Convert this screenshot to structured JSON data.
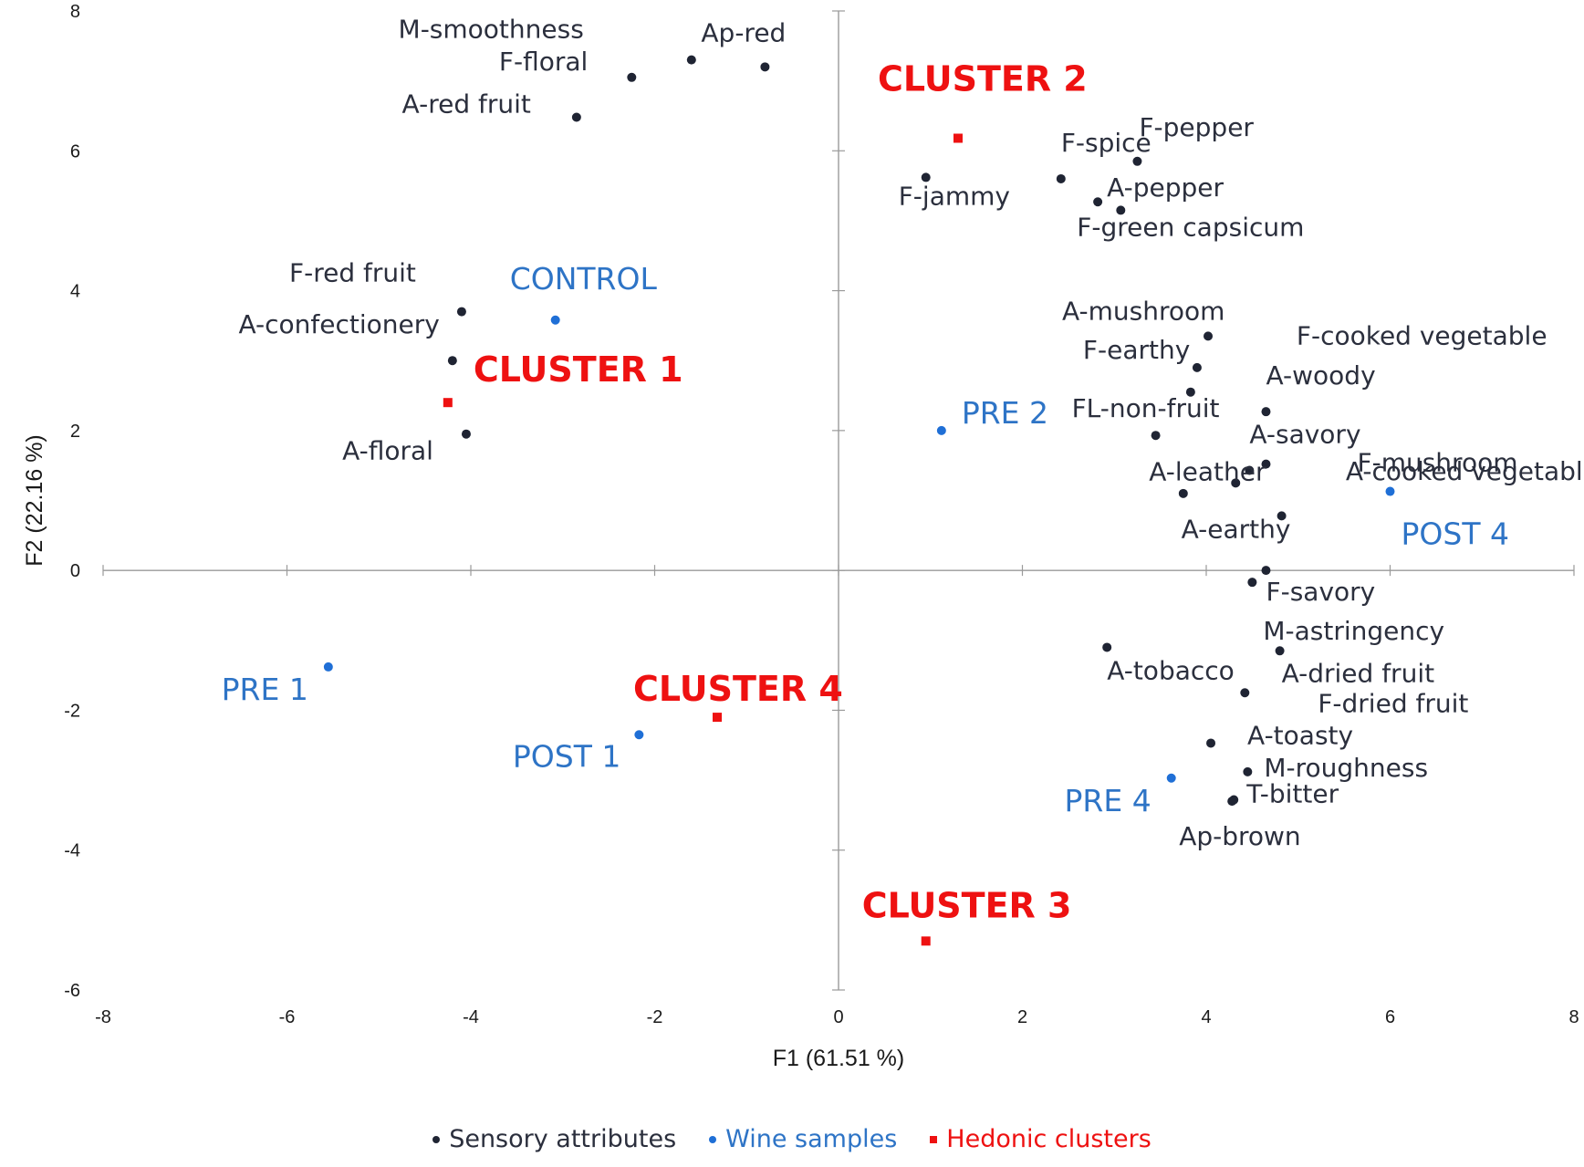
{
  "chart_data": {
    "type": "scatter",
    "xlabel": "F1 (61.51 %)",
    "ylabel": "F2 (22.16 %)",
    "xlim": [
      -8,
      8
    ],
    "ylim": [
      -6,
      8
    ],
    "x_ticks": [
      "-8",
      "-6",
      "-4",
      "-2",
      "0",
      "2",
      "4",
      "6",
      "8"
    ],
    "y_ticks": [
      "-6",
      "-4",
      "-2",
      "0",
      "2",
      "4",
      "6",
      "8"
    ],
    "grid": false,
    "legend_position": "bottom",
    "legend": [
      {
        "label": "Sensory attributes",
        "series": "attributes"
      },
      {
        "label": "Wine samples",
        "series": "samples"
      },
      {
        "label": "Hedonic clusters",
        "series": "clusters"
      }
    ],
    "series": [
      {
        "key": "attributes",
        "color": "#1f2433",
        "marker": "circle",
        "points": [
          {
            "label": "M-smoothness",
            "x": -1.6,
            "y": 7.3
          },
          {
            "label": "Ap-red",
            "x": -0.8,
            "y": 7.2
          },
          {
            "label": "F-floral",
            "x": -2.25,
            "y": 7.05
          },
          {
            "label": "A-red fruit",
            "x": -2.85,
            "y": 6.48
          },
          {
            "label": "F-red fruit",
            "x": -4.1,
            "y": 3.7
          },
          {
            "label": "A-confectionery",
            "x": -4.2,
            "y": 3.0
          },
          {
            "label": "A-floral",
            "x": -4.05,
            "y": 1.95
          },
          {
            "label": "F-jammy",
            "x": 0.95,
            "y": 5.62
          },
          {
            "label": "F-spice",
            "x": 2.42,
            "y": 5.6
          },
          {
            "label": "F-pepper",
            "x": 3.25,
            "y": 5.85
          },
          {
            "label": "A-pepper",
            "x": 2.82,
            "y": 5.27
          },
          {
            "label": "F-green capsicum",
            "x": 3.07,
            "y": 5.15
          },
          {
            "label": "A-mushroom",
            "x": 4.02,
            "y": 3.35
          },
          {
            "label": "F-earthy",
            "x": 3.9,
            "y": 2.9
          },
          {
            "label": "F-cooked vegetable",
            "x": 3.83,
            "y": 2.55
          },
          {
            "label": "A-woody",
            "x": 4.65,
            "y": 2.27
          },
          {
            "label": "FL-non-fruit",
            "x": 3.45,
            "y": 1.93
          },
          {
            "label": "F-mushroom",
            "x": 4.65,
            "y": 1.52
          },
          {
            "label": "A-savory",
            "x": 4.47,
            "y": 1.43
          },
          {
            "label": "A-leather",
            "x": 4.32,
            "y": 1.25
          },
          {
            "label": "A-cooked vegetable",
            "x": 3.75,
            "y": 1.1
          },
          {
            "label": "A-earthy",
            "x": 4.82,
            "y": 0.78
          },
          {
            "label": "F-savory",
            "x": 4.65,
            "y": 0.0
          },
          {
            "label": "M-astringency",
            "x": 4.5,
            "y": -0.17
          },
          {
            "label": "A-tobacco",
            "x": 2.92,
            "y": -1.1
          },
          {
            "label": "A-dried fruit",
            "x": 4.8,
            "y": -1.15
          },
          {
            "label": "F-dried fruit",
            "x": 4.42,
            "y": -1.75
          },
          {
            "label": "A-toasty",
            "x": 4.05,
            "y": -2.47
          },
          {
            "label": "M-roughness",
            "x": 4.45,
            "y": -2.88
          },
          {
            "label": "T-bitter",
            "x": 4.3,
            "y": -3.28
          },
          {
            "label": "Ap-brown",
            "x": 4.28,
            "y": -3.3
          }
        ]
      },
      {
        "key": "samples",
        "color": "#1f6fd6",
        "marker": "circle",
        "points": [
          {
            "label": "CONTROL",
            "x": -3.08,
            "y": 3.58
          },
          {
            "label": "PRE 2",
            "x": 1.12,
            "y": 2.0
          },
          {
            "label": "POST 4",
            "x": 6.0,
            "y": 1.13
          },
          {
            "label": "PRE 1",
            "x": -5.55,
            "y": -1.38
          },
          {
            "label": "POST 1",
            "x": -2.17,
            "y": -2.35
          },
          {
            "label": "PRE 4",
            "x": 3.62,
            "y": -2.97
          }
        ]
      },
      {
        "key": "clusters",
        "color": "#ee1111",
        "marker": "square",
        "points": [
          {
            "label": "CLUSTER 1",
            "x": -4.25,
            "y": 2.4
          },
          {
            "label": "CLUSTER 2",
            "x": 1.3,
            "y": 6.18
          },
          {
            "label": "CLUSTER 3",
            "x": 0.95,
            "y": -5.3
          },
          {
            "label": "CLUSTER 4",
            "x": -1.32,
            "y": -2.1
          }
        ]
      }
    ]
  }
}
